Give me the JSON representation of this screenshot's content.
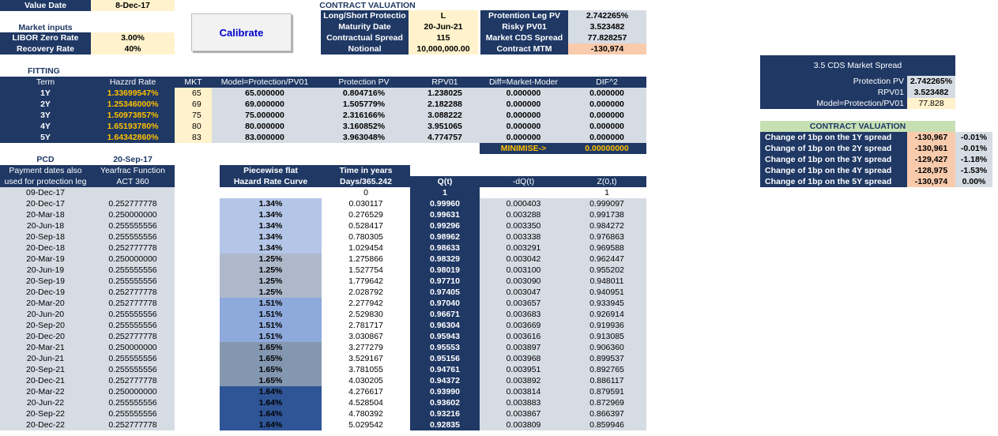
{
  "header": {
    "value_date_label": "Value Date",
    "value_date": "8-Dec-17",
    "market_inputs_title": "Market inputs",
    "libor_label": "LIBOR Zero Rate",
    "libor_value": "3.00%",
    "recovery_label": "Recovery Rate",
    "recovery_value": "40%",
    "calibrate_label": "Calibrate"
  },
  "contract_valuation": {
    "title": "CONTRACT VALUATION",
    "rows": [
      {
        "label": "Long/Short Protectio",
        "value": "L",
        "label2": "Protention Leg PV",
        "value2": "2.742265%"
      },
      {
        "label": "Maturity Date",
        "value": "20-Jun-21",
        "label2": "Risky PV01",
        "value2": "3.523482"
      },
      {
        "label": "Contractual Spread",
        "value": "115",
        "label2": "Market CDS Spread",
        "value2": "77.828257"
      },
      {
        "label": "Notional",
        "value": "10,000,000.00",
        "label2": "Contract MTM",
        "value2": "-130,974"
      }
    ]
  },
  "fitting": {
    "title": "FITTING",
    "headers": [
      "Term",
      "Hazzrd Rate",
      "MKT",
      "Model=Protection/PV01",
      "Protection PV",
      "RPV01",
      "Diff=Market-Moder",
      "DIF^2"
    ],
    "rows": [
      [
        "1Y",
        "1.33699547%",
        "65",
        "65.000000",
        "0.804716%",
        "1.238025",
        "0.000000",
        "0.000000"
      ],
      [
        "2Y",
        "1.25346000%",
        "69",
        "69.000000",
        "1.505779%",
        "2.182288",
        "0.000000",
        "0.000000"
      ],
      [
        "3Y",
        "1.50973857%",
        "75",
        "75.000000",
        "2.316166%",
        "3.088222",
        "0.000000",
        "0.000000"
      ],
      [
        "4Y",
        "1.65193780%",
        "80",
        "80.000000",
        "3.160852%",
        "3.951065",
        "0.000000",
        "0.000000"
      ],
      [
        "5Y",
        "1.64342860%",
        "83",
        "83.000000",
        "3.963048%",
        "4.774757",
        "0.000000",
        "0.000000"
      ]
    ],
    "minimise_label": "MINIMISE->",
    "minimise_value": "0.00000000"
  },
  "pcd": {
    "label": "PCD",
    "date": "20-Sep-17",
    "h1a": "Payment dates also",
    "h1b": "used for protection leg",
    "h2a": "Yearfrac Function",
    "h2b": "ACT 360",
    "h3a": "Piecewise flat",
    "h3b": "Hazard Rate Curve",
    "h4a": "Time in years",
    "h4b": "Days/365.242",
    "h5": "Q(t)",
    "h6": "-dQ(t)",
    "h7": "Z(0,t)",
    "first_row": {
      "date": "09-Dec-17",
      "time": "0",
      "q": "1",
      "z": "1"
    },
    "rows": [
      [
        "20-Dec-17",
        "0.252777778",
        "1.34%",
        "0.030117",
        "0.99960",
        "0.000403",
        "0.999097"
      ],
      [
        "20-Mar-18",
        "0.250000000",
        "1.34%",
        "0.276529",
        "0.99631",
        "0.003288",
        "0.991738"
      ],
      [
        "20-Jun-18",
        "0.255555556",
        "1.34%",
        "0.528417",
        "0.99296",
        "0.003350",
        "0.984272"
      ],
      [
        "20-Sep-18",
        "0.255555556",
        "1.34%",
        "0.780305",
        "0.98962",
        "0.003338",
        "0.976863"
      ],
      [
        "20-Dec-18",
        "0.252777778",
        "1.34%",
        "1.029454",
        "0.98633",
        "0.003291",
        "0.969588"
      ],
      [
        "20-Mar-19",
        "0.250000000",
        "1.25%",
        "1.275866",
        "0.98329",
        "0.003042",
        "0.962447"
      ],
      [
        "20-Jun-19",
        "0.255555556",
        "1.25%",
        "1.527754",
        "0.98019",
        "0.003100",
        "0.955202"
      ],
      [
        "20-Sep-19",
        "0.255555556",
        "1.25%",
        "1.779642",
        "0.97710",
        "0.003090",
        "0.948011"
      ],
      [
        "20-Dec-19",
        "0.252777778",
        "1.25%",
        "2.028792",
        "0.97405",
        "0.003047",
        "0.940951"
      ],
      [
        "20-Mar-20",
        "0.252777778",
        "1.51%",
        "2.277942",
        "0.97040",
        "0.003657",
        "0.933945"
      ],
      [
        "20-Jun-20",
        "0.255555556",
        "1.51%",
        "2.529830",
        "0.96671",
        "0.003683",
        "0.926914"
      ],
      [
        "20-Sep-20",
        "0.255555556",
        "1.51%",
        "2.781717",
        "0.96304",
        "0.003669",
        "0.919936"
      ],
      [
        "20-Dec-20",
        "0.252777778",
        "1.51%",
        "3.030867",
        "0.95943",
        "0.003616",
        "0.913085"
      ],
      [
        "20-Mar-21",
        "0.250000000",
        "1.65%",
        "3.277279",
        "0.95553",
        "0.003897",
        "0.906360"
      ],
      [
        "20-Jun-21",
        "0.255555556",
        "1.65%",
        "3.529167",
        "0.95156",
        "0.003968",
        "0.899537"
      ],
      [
        "20-Sep-21",
        "0.255555556",
        "1.65%",
        "3.781055",
        "0.94761",
        "0.003951",
        "0.892765"
      ],
      [
        "20-Dec-21",
        "0.252777778",
        "1.65%",
        "4.030205",
        "0.94372",
        "0.003892",
        "0.886117"
      ],
      [
        "20-Mar-22",
        "0.250000000",
        "1.64%",
        "4.276617",
        "0.93990",
        "0.003814",
        "0.879591"
      ],
      [
        "20-Jun-22",
        "0.255555556",
        "1.64%",
        "4.528504",
        "0.93602",
        "0.003883",
        "0.872969"
      ],
      [
        "20-Sep-22",
        "0.255555556",
        "1.64%",
        "4.780392",
        "0.93216",
        "0.003867",
        "0.866397"
      ],
      [
        "20-Dec-22",
        "0.252777778",
        "1.64%",
        "5.029542",
        "0.92835",
        "0.003809",
        "0.859946"
      ]
    ],
    "hazard_colors": [
      "#b4c6e7",
      "#adb9ca",
      "#8ea9db",
      "#8497b0",
      "#2f5597"
    ]
  },
  "market_spread": {
    "title": "3.5 CDS Market Spread",
    "rows": [
      {
        "label": "Protection PV",
        "value": "2.742265%"
      },
      {
        "label": "RPV01",
        "value": "3.523482"
      },
      {
        "label": "Model=Protection/PV01",
        "value": "77.828"
      }
    ]
  },
  "sensitivity": {
    "title": "CONTRACT VALUATION",
    "rows": [
      {
        "label": "Change of 1bp on the 1Y spread",
        "value": "-130,967",
        "pct": "-0.01%"
      },
      {
        "label": "Change of 1bp on the 2Y spread",
        "value": "-130,961",
        "pct": "-0.01%"
      },
      {
        "label": "Change of 1bp on the 3Y spread",
        "value": "-129,427",
        "pct": "-1.18%"
      },
      {
        "label": "Change of 1bp on the 4Y spread",
        "value": "-128,975",
        "pct": "-1.53%"
      },
      {
        "label": "Change of 1bp on the 5Y spread",
        "value": "-130,974",
        "pct": "0.00%"
      }
    ]
  }
}
